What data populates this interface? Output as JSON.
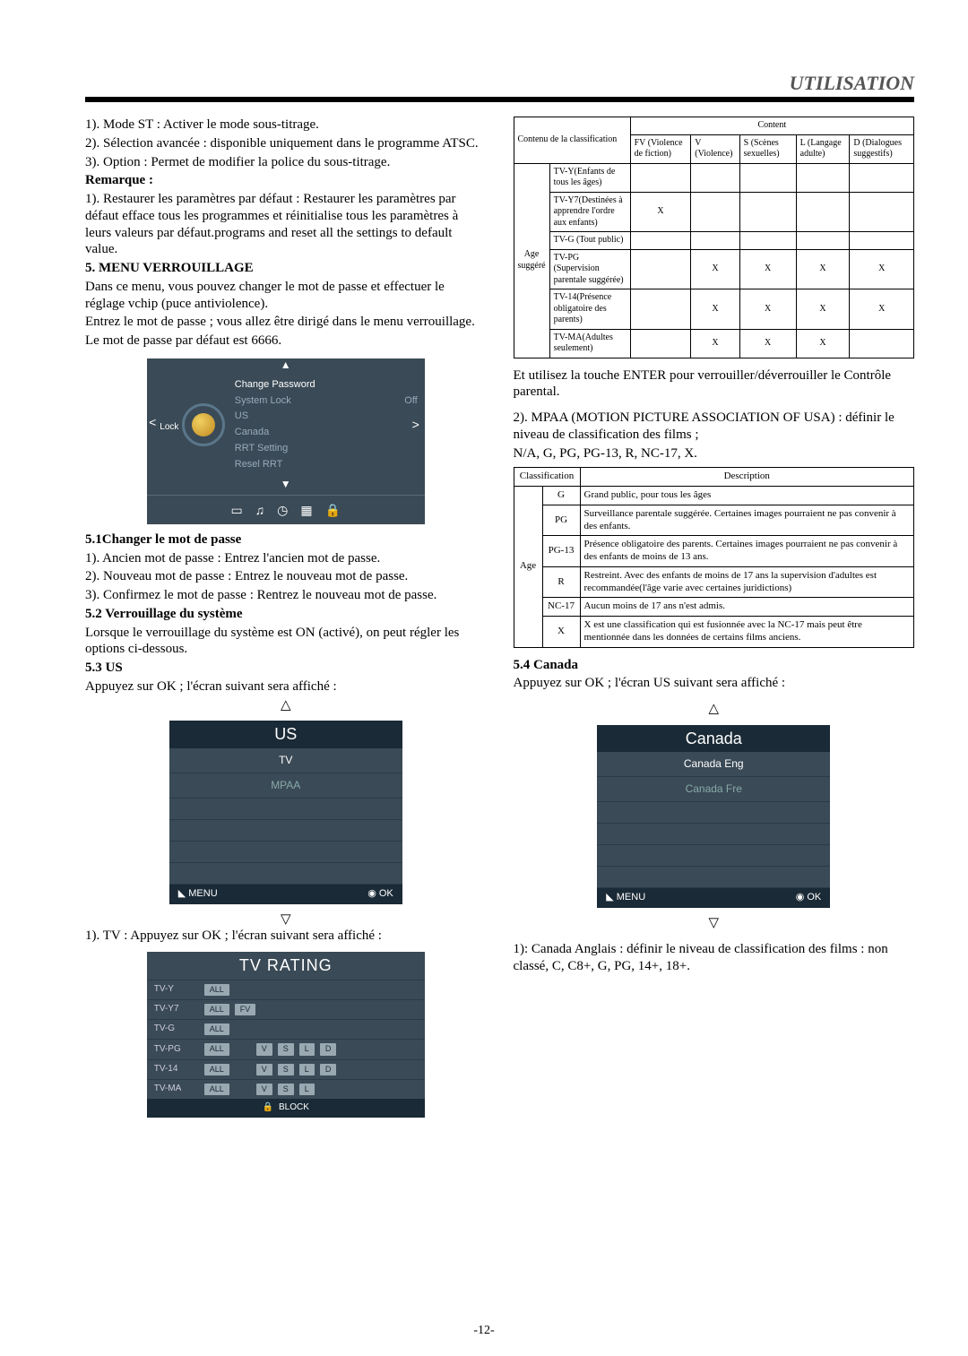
{
  "header": "UTILISATION",
  "left": {
    "p1": "1). Mode ST : Activer le mode sous-titrage.",
    "p2": "2). Sélection avancée : disponible uniquement dans le programme ATSC.",
    "p3": "3). Option : Permet de modifier la police du sous-titrage.",
    "rem_title": "Remarque :",
    "rem_text": "1). Restaurer les paramètres par défaut : Restaurer les paramètres par défaut efface tous les programmes et réinitialise tous les paramètres à leurs valeurs par défaut.programs and reset all the settings to default value.",
    "menu5_title": "5. MENU VERROUILLAGE",
    "menu5_text1": "Dans ce menu, vous pouvez changer le mot de passe et effectuer le réglage vchip (puce antiviolence).",
    "menu5_text2": "Entrez le mot de passe ; vous allez être dirigé dans le menu verrouillage.",
    "menu5_text3": "Le mot de passe par défaut est 6666.",
    "lockmenu": {
      "label": "Lock",
      "r1": "Change Password",
      "r2": "System Lock",
      "r2v": "Off",
      "r3": "US",
      "r4": "Canada",
      "r5": "RRT Setting",
      "r6": "Resel RRT"
    },
    "s51_title": "5.1Changer le mot de passe",
    "s51_1": "1). Ancien mot de passe : Entrez l'ancien mot de passe.",
    "s51_2": "2). Nouveau mot de passe : Entrez le nouveau mot de passe.",
    "s51_3": "3). Confirmez le mot de passe : Rentrez le nouveau mot de passe.",
    "s52_title": "5.2 Verrouillage du système",
    "s52_text": "Lorsque le verrouillage du système est ON (activé), on peut régler les options ci-dessous.",
    "s53_title": "5.3 US",
    "s53_text": "Appuyez sur OK ; l'écran suivant sera affiché :",
    "usmenu": {
      "title": "US",
      "r1": "TV",
      "r2": "MPAA",
      "menu": "MENU",
      "ok": "OK"
    },
    "tvline": "1). TV : Appuyez sur OK ; l'écran suivant sera affiché :",
    "tvr": {
      "title": "TV RATING",
      "rows": [
        {
          "label": "TV-Y",
          "tags": [
            "ALL"
          ]
        },
        {
          "label": "TV-Y7",
          "tags": [
            "ALL",
            "FV"
          ]
        },
        {
          "label": "TV-G",
          "tags": [
            "ALL"
          ]
        },
        {
          "label": "TV-PG",
          "tags": [
            "ALL",
            "",
            "V",
            "S",
            "L",
            "D"
          ]
        },
        {
          "label": "TV-14",
          "tags": [
            "ALL",
            "",
            "V",
            "S",
            "L",
            "D"
          ]
        },
        {
          "label": "TV-MA",
          "tags": [
            "ALL",
            "",
            "V",
            "S",
            "L"
          ]
        }
      ],
      "footer": "BLOCK"
    }
  },
  "right": {
    "content_tbl": {
      "head_merge": "Contenu de la classification",
      "head_content": "Content",
      "cols": [
        "FV (Violence de fiction)",
        "V (Violence)",
        "S (Scènes sexuelles)",
        "L (Langage adulte)",
        "D (Dialogues suggestifs)"
      ],
      "rowhead": "Age suggéré",
      "rows": [
        {
          "label": "TV-Y(Enfants de tous les âges)",
          "cells": [
            "",
            "",
            "",
            "",
            ""
          ]
        },
        {
          "label": "TV-Y7(Destinées à apprendre l'ordre aux enfants)",
          "cells": [
            "X",
            "",
            "",
            "",
            ""
          ]
        },
        {
          "label": "TV-G (Tout public)",
          "cells": [
            "",
            "",
            "",
            "",
            ""
          ]
        },
        {
          "label": "TV-PG (Supervision parentale suggérée)",
          "cells": [
            "",
            "X",
            "X",
            "X",
            "X"
          ]
        },
        {
          "label": "TV-14(Présence obligatoire des parents)",
          "cells": [
            "",
            "X",
            "X",
            "X",
            "X"
          ]
        },
        {
          "label": "TV-MA(Adultes seulement)",
          "cells": [
            "",
            "X",
            "X",
            "X",
            ""
          ]
        }
      ]
    },
    "enter_text": "Et utilisez la touche ENTER pour verrouiller/déverrouiller le Contrôle parental.",
    "mpaa_text": "2). MPAA (MOTION PICTURE ASSOCIATION OF USA) : définir le niveau de classification des films ;",
    "mpaa_list": "N/A, G, PG, PG-13, R, NC-17, X.",
    "classif_tbl": {
      "h1": "Classification",
      "h2": "Description",
      "rowhead": "Age",
      "rows": [
        {
          "c": "G",
          "d": "Grand public, pour tous les âges"
        },
        {
          "c": "PG",
          "d": "Surveillance parentale suggérée. Certaines images pourraient ne pas convenir à des enfants."
        },
        {
          "c": "PG-13",
          "d": "Présence obligatoire des parents. Certaines images pourraient ne pas convenir à des enfants de moins de 13 ans."
        },
        {
          "c": "R",
          "d": "Restreint. Avec des enfants de moins de 17 ans la supervision d'adultes est recommandée(l'âge varie avec certaines juridictions)"
        },
        {
          "c": "NC-17",
          "d": "Aucun moins de 17 ans n'est admis."
        },
        {
          "c": "X",
          "d": "X est une classification qui est fusionnée avec la NC-17 mais peut être mentionnée dans les données de certains films anciens."
        }
      ]
    },
    "s54_title": "5.4 Canada",
    "s54_text": "Appuyez sur OK ; l'écran US suivant sera affiché :",
    "canmenu": {
      "title": "Canada",
      "r1": "Canada Eng",
      "r2": "Canada Fre",
      "menu": "MENU",
      "ok": "OK"
    },
    "can_text": "1): Canada Anglais : définir le niveau de classification des films : non classé, C, C8+, G, PG, 14+, 18+."
  },
  "page_num": "-12-"
}
